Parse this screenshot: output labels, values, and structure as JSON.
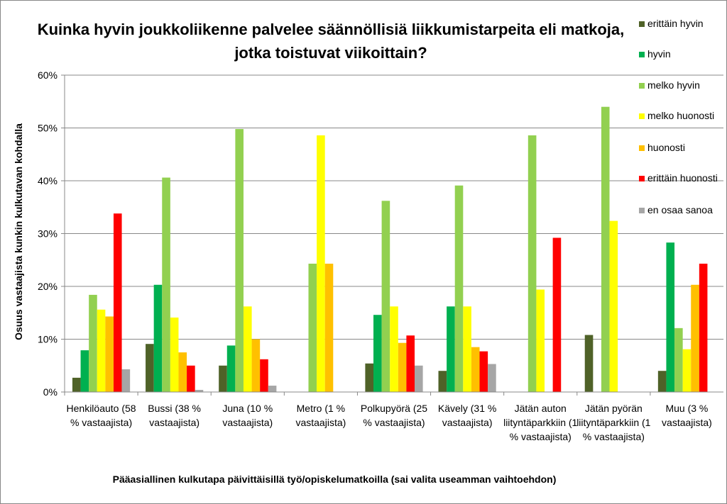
{
  "chart_data": {
    "type": "bar",
    "title": "Kuinka hyvin joukkoliikenne palvelee säännöllisiä liikkumistarpeita eli matkoja, jotka toistuvat viikoittain?",
    "x_label": "Pääasiallinen kulkutapa päivittäisillä työ/opiskelumatkoilla (sai valita useamman vaihtoehdon)",
    "y_label": "Osuus vastaajista kunkin kulkutavan kohdalla",
    "categories": [
      "Henkilöauto (58 % vastaajista)",
      "Bussi (38 % vastaajista)",
      "Juna (10 % vastaajista)",
      "Metro (1 % vastaajista)",
      "Polkupyörä (25 % vastaajista)",
      "Kävely (31 % vastaajista)",
      "Jätän auton liityntäparkkiin (1 % vastaajista)",
      "Jätän pyörän liityntäparkkiin (1 % vastaajista)",
      "Muu (3 % vastaajista)"
    ],
    "series": [
      {
        "name": "erittäin hyvin",
        "color": "#4f6228",
        "values": [
          2.7,
          9.1,
          5.0,
          0,
          5.4,
          4.0,
          0,
          10.8,
          4.0
        ]
      },
      {
        "name": "hyvin",
        "color": "#00b050",
        "values": [
          7.9,
          20.3,
          8.8,
          0,
          14.6,
          16.2,
          0,
          0,
          28.3
        ]
      },
      {
        "name": "melko hyvin",
        "color": "#92d050",
        "values": [
          18.4,
          40.6,
          49.8,
          24.3,
          36.2,
          39.1,
          48.6,
          54.0,
          12.1
        ]
      },
      {
        "name": "melko huonosti",
        "color": "#ffff00",
        "values": [
          15.6,
          14.1,
          16.2,
          48.6,
          16.2,
          16.2,
          19.4,
          32.4,
          8.1
        ]
      },
      {
        "name": "huonosti",
        "color": "#ffc000",
        "values": [
          14.3,
          7.5,
          10.0,
          24.3,
          9.3,
          8.5,
          0,
          0,
          20.3
        ]
      },
      {
        "name": "erittäin huonosti",
        "color": "#ff0000",
        "values": [
          33.8,
          5.0,
          6.2,
          0,
          10.7,
          7.7,
          29.2,
          0,
          24.3
        ]
      },
      {
        "name": "en osaa sanoa",
        "color": "#a6a6a6",
        "values": [
          4.3,
          0.4,
          1.2,
          0,
          5.0,
          5.3,
          0,
          0,
          0
        ]
      }
    ],
    "ylim": [
      0,
      60
    ],
    "yticks": [
      {
        "value": 0,
        "label": "0%"
      },
      {
        "value": 10,
        "label": "10%"
      },
      {
        "value": 20,
        "label": "20%"
      },
      {
        "value": 30,
        "label": "30%"
      },
      {
        "value": 40,
        "label": "40%"
      },
      {
        "value": 50,
        "label": "50%"
      },
      {
        "value": 60,
        "label": "60%"
      }
    ],
    "grid": true,
    "legend": "right"
  }
}
